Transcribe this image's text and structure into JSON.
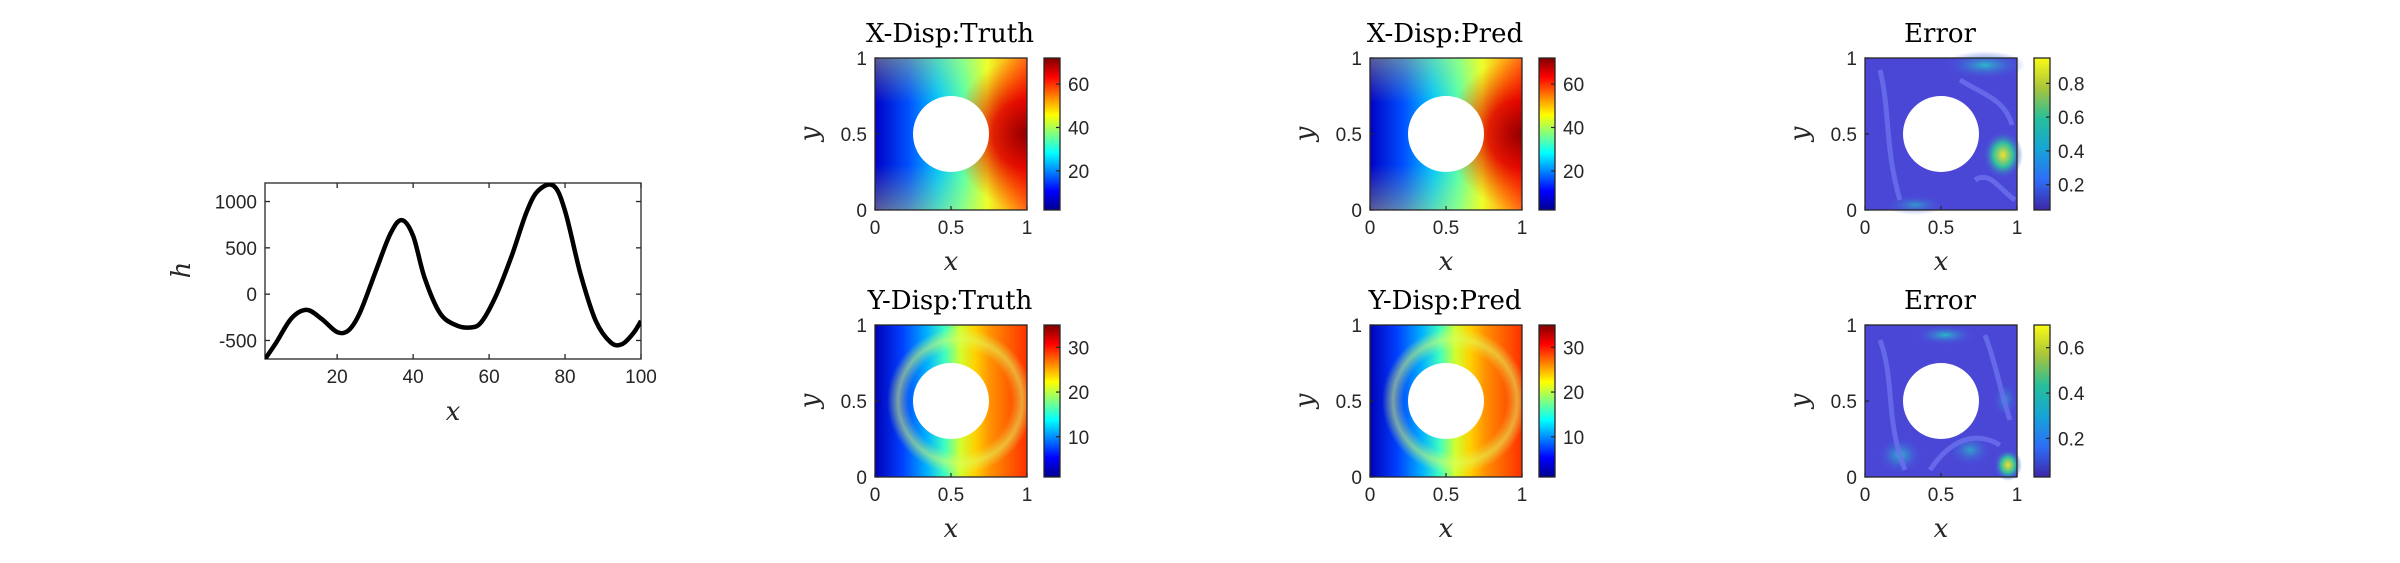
{
  "chart_data": [
    {
      "type": "line",
      "title": "",
      "xlabel": "x",
      "ylabel": "h",
      "xlim": [
        1,
        100
      ],
      "ylim": [
        -700,
        1200
      ],
      "xticks": [
        "20",
        "40",
        "60",
        "80",
        "100"
      ],
      "yticks": [
        "-500",
        "0",
        "500",
        "1000"
      ],
      "series": [
        {
          "color": "#000000",
          "x": [
            1,
            4,
            8,
            12,
            16,
            20,
            23,
            26,
            30,
            34,
            37,
            40,
            43,
            47,
            51,
            55,
            58,
            62,
            66,
            70,
            73,
            77,
            80,
            84,
            88,
            92,
            95,
            98,
            100
          ],
          "y": [
            -700,
            -520,
            -260,
            -170,
            -270,
            -410,
            -390,
            -200,
            230,
            650,
            800,
            630,
            180,
            -200,
            -330,
            -360,
            -300,
            0,
            420,
            900,
            1120,
            1170,
            900,
            230,
            -280,
            -520,
            -540,
            -420,
            -290
          ]
        }
      ]
    },
    {
      "type": "heatmap",
      "title": "X-Disp:Truth",
      "xlabel": "x",
      "ylabel": "y",
      "xticks": [
        "0",
        "0.5",
        "1"
      ],
      "yticks": [
        "0",
        "0.5",
        "1"
      ],
      "colormap": "jet",
      "colorbar_ticks": [
        "20",
        "40",
        "60"
      ],
      "colorbar_range": [
        2,
        72
      ]
    },
    {
      "type": "heatmap",
      "title": "X-Disp:Pred",
      "xlabel": "x",
      "ylabel": "y",
      "xticks": [
        "0",
        "0.5",
        "1"
      ],
      "yticks": [
        "0",
        "0.5",
        "1"
      ],
      "colormap": "jet",
      "colorbar_ticks": [
        "20",
        "40",
        "60"
      ],
      "colorbar_range": [
        2,
        72
      ]
    },
    {
      "type": "heatmap",
      "title": "Error",
      "xlabel": "x",
      "ylabel": "y",
      "xticks": [
        "0",
        "0.5",
        "1"
      ],
      "yticks": [
        "0",
        "0.5",
        "1"
      ],
      "colormap": "parula",
      "colorbar_ticks": [
        "0.2",
        "0.4",
        "0.6",
        "0.8"
      ],
      "colorbar_range": [
        0.05,
        0.95
      ]
    },
    {
      "type": "heatmap",
      "title": "Y-Disp:Truth",
      "xlabel": "x",
      "ylabel": "y",
      "xticks": [
        "0",
        "0.5",
        "1"
      ],
      "yticks": [
        "0",
        "0.5",
        "1"
      ],
      "colormap": "jet",
      "colorbar_ticks": [
        "10",
        "20",
        "30"
      ],
      "colorbar_range": [
        1,
        35
      ]
    },
    {
      "type": "heatmap",
      "title": "Y-Disp:Pred",
      "xlabel": "x",
      "ylabel": "y",
      "xticks": [
        "0",
        "0.5",
        "1"
      ],
      "yticks": [
        "0",
        "0.5",
        "1"
      ],
      "colormap": "jet",
      "colorbar_ticks": [
        "10",
        "20",
        "30"
      ],
      "colorbar_range": [
        1,
        35
      ]
    },
    {
      "type": "heatmap",
      "title": "Error",
      "xlabel": "x",
      "ylabel": "y",
      "xticks": [
        "0",
        "0.5",
        "1"
      ],
      "yticks": [
        "0",
        "0.5",
        "1"
      ],
      "colormap": "parula",
      "colorbar_ticks": [
        "0.2",
        "0.4",
        "0.6"
      ],
      "colorbar_range": [
        0.03,
        0.7
      ]
    }
  ]
}
